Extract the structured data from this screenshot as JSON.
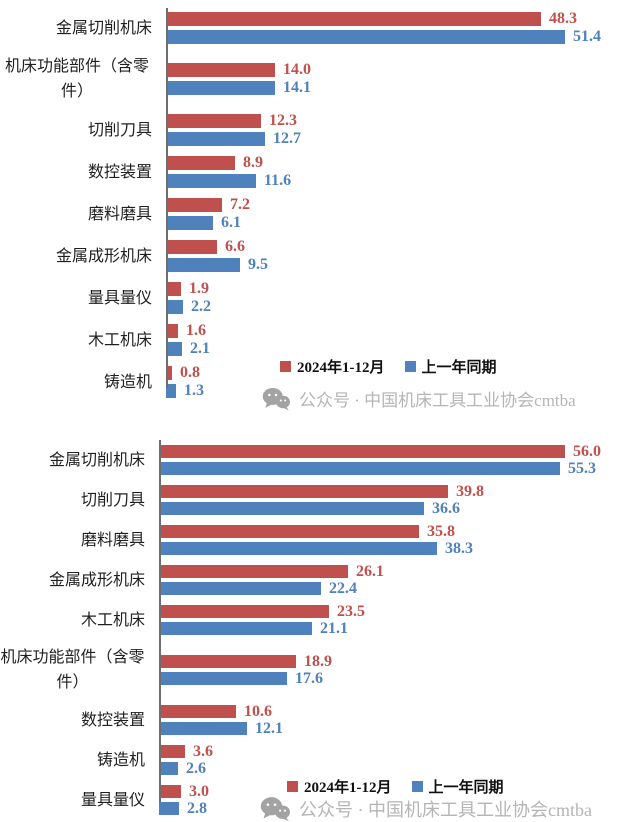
{
  "legend": {
    "series1_label": "2024年1-12月",
    "series2_label": "上一年同期"
  },
  "watermark": {
    "icon": "wechat-icon",
    "text": "公众号 · 中国机床工具工业协会cmtba",
    "color": "#b5b5b5"
  },
  "colors": {
    "current_period_red": "#C0504D",
    "prior_period_blue": "#4F81BD",
    "axis_line": "#6e6e6e"
  },
  "chart_data": [
    {
      "type": "bar",
      "orientation": "horizontal",
      "title": "",
      "xlabel": "",
      "ylabel": "",
      "xlim": [
        0,
        56
      ],
      "grid": false,
      "legend_position": "inside-bottom-right",
      "value_labels": true,
      "categories": [
        "金属切削机床",
        "机床功能部件（含零件）",
        "切削刀具",
        "数控装置",
        "磨料磨具",
        "金属成形机床",
        "量具量仪",
        "木工机床",
        "铸造机"
      ],
      "series": [
        {
          "name": "2024年1-12月",
          "color": "#C0504D",
          "values": [
            48.3,
            14.0,
            12.3,
            8.9,
            7.2,
            6.6,
            1.9,
            1.6,
            0.8
          ]
        },
        {
          "name": "上一年同期",
          "color": "#4F81BD",
          "values": [
            51.4,
            14.1,
            12.7,
            11.6,
            6.1,
            9.5,
            2.2,
            2.1,
            1.3
          ]
        }
      ]
    },
    {
      "type": "bar",
      "orientation": "horizontal",
      "title": "",
      "xlabel": "",
      "ylabel": "",
      "xlim": [
        0,
        60
      ],
      "grid": false,
      "legend_position": "inside-bottom-right",
      "value_labels": true,
      "categories": [
        "金属切削机床",
        "切削刀具",
        "磨料磨具",
        "金属成形机床",
        "木工机床",
        "机床功能部件（含零件）",
        "数控装置",
        "铸造机",
        "量具量仪"
      ],
      "series": [
        {
          "name": "2024年1-12月",
          "color": "#C0504D",
          "values": [
            56.0,
            39.8,
            35.8,
            26.1,
            23.5,
            18.9,
            10.6,
            3.6,
            3.0
          ]
        },
        {
          "name": "上一年同期",
          "color": "#4F81BD",
          "values": [
            55.3,
            36.6,
            38.3,
            22.4,
            21.1,
            17.6,
            12.1,
            2.6,
            2.8
          ]
        }
      ]
    }
  ]
}
